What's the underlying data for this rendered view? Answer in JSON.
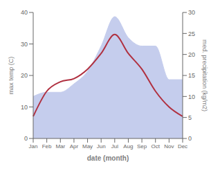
{
  "chart_data": {
    "type": "line",
    "xlabel": "date (month)",
    "ylabel": "max temp (C)",
    "y2label": "med. precipitation (kg/m2)",
    "categories": [
      "Jan",
      "Feb",
      "Mar",
      "Apr",
      "May",
      "Jun",
      "Jul",
      "Aug",
      "Sep",
      "Oct",
      "Nov",
      "Dec"
    ],
    "series": [
      {
        "type": "area",
        "axis": "y2",
        "color": "#c5cded",
        "values": [
          10,
          11,
          11,
          13,
          16,
          22,
          29,
          24,
          22,
          22,
          14,
          14
        ]
      },
      {
        "type": "line",
        "color": "#b03040",
        "values": [
          7,
          15,
          18,
          19,
          22,
          27,
          33,
          27,
          22,
          15,
          10,
          7
        ]
      }
    ],
    "ylim": [
      0,
      40
    ],
    "yticks": [
      0,
      10,
      20,
      30,
      40
    ],
    "y2lim": [
      0,
      30
    ],
    "y2ticks": [
      0,
      5,
      10,
      15,
      20,
      25,
      30
    ],
    "grid": false
  }
}
